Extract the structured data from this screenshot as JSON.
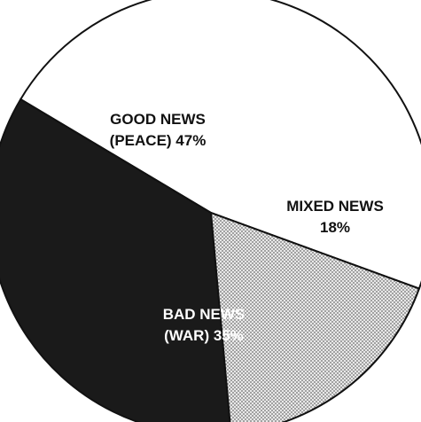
{
  "chart_data": {
    "type": "pie",
    "slices": [
      {
        "key": "good",
        "label_lines": [
          "GOOD NEWS",
          "(PEACE) 47%"
        ],
        "value": 47,
        "fill": "#ffffff",
        "text_color": "#111111",
        "pattern": "none"
      },
      {
        "key": "mixed",
        "label_lines": [
          "MIXED NEWS",
          "18%"
        ],
        "value": 18,
        "fill": "#c9c9c9",
        "text_color": "#111111",
        "pattern": "dots"
      },
      {
        "key": "bad",
        "label_lines": [
          "BAD NEWS",
          "(WAR) 35%"
        ],
        "value": 35,
        "fill": "#1a1a1a",
        "text_color": "#ffffff",
        "pattern": "none"
      }
    ],
    "colors": {
      "outline": "#111111",
      "dot_dark": "#6f6f6f",
      "dot_light": "#e8e8e8"
    }
  }
}
